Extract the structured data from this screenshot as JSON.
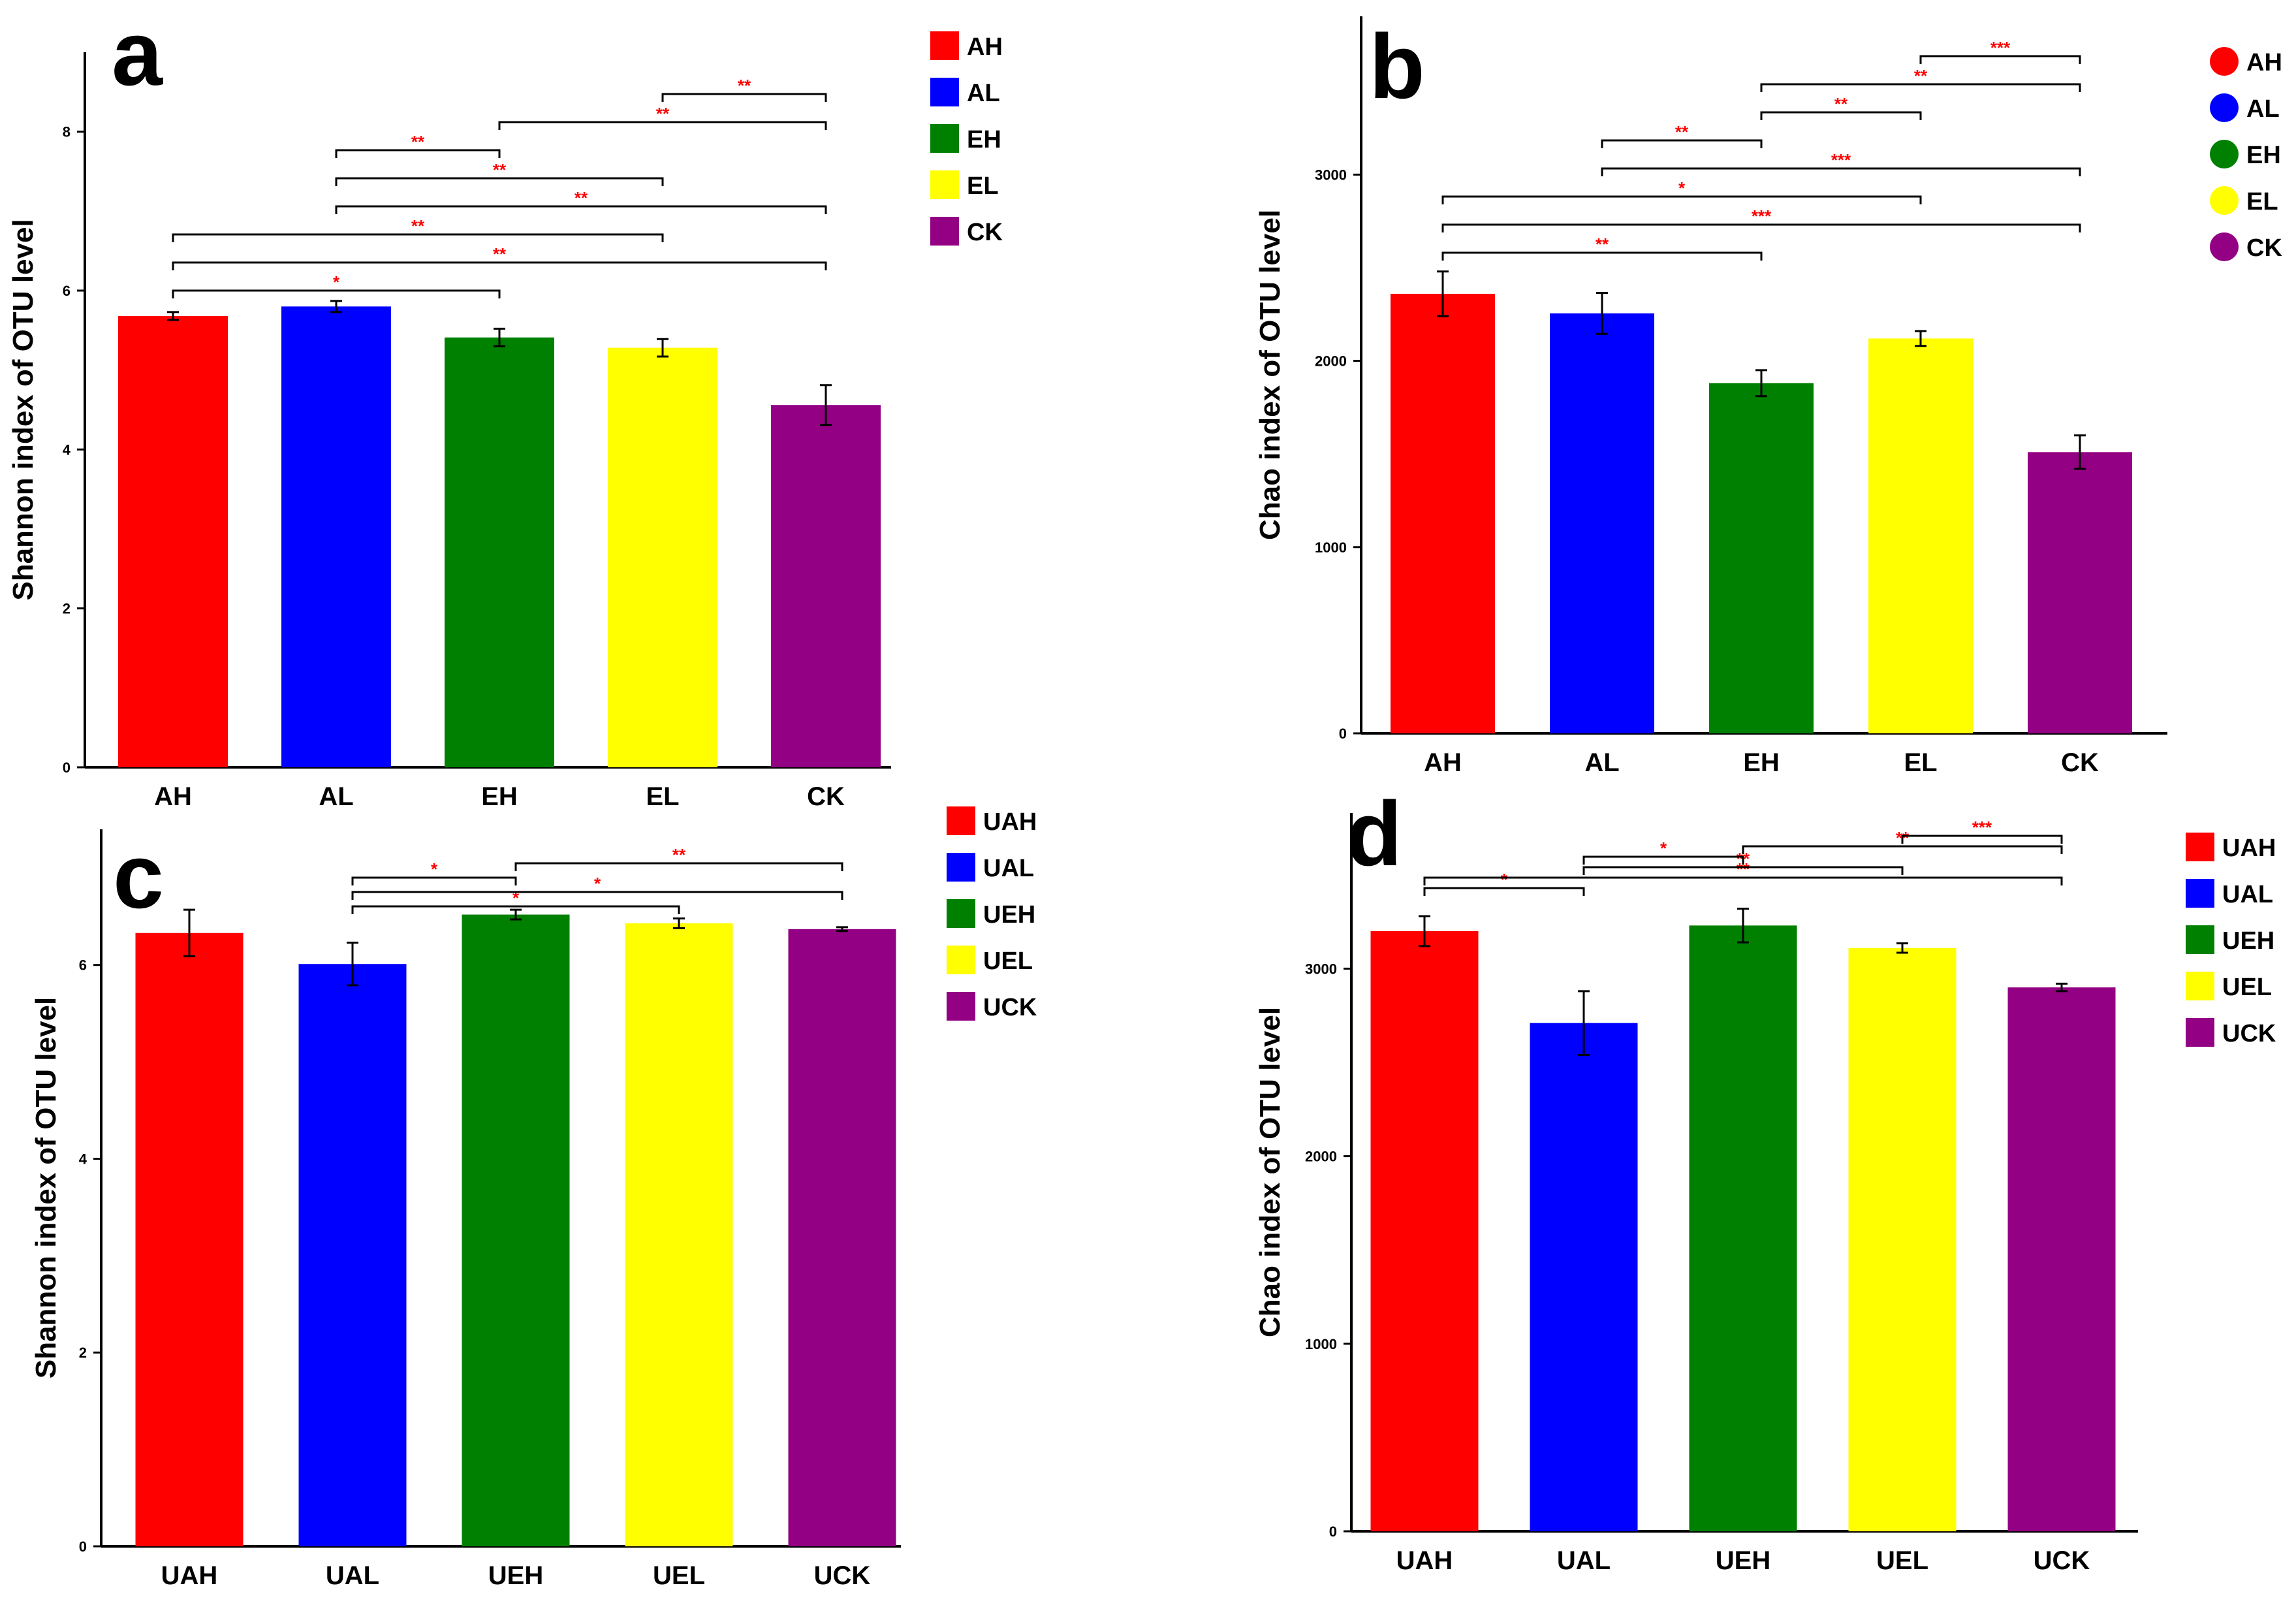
{
  "figure": {
    "colors": {
      "red": "#ff0000",
      "blue": "#0000ff",
      "green": "#008000",
      "yellow": "#ffff00",
      "purple": "#930083",
      "sig": "#ff0000"
    }
  },
  "chart_data": [
    {
      "panel": "a",
      "type": "bar",
      "categories": [
        "AH",
        "AL",
        "EH",
        "EL",
        "CK"
      ],
      "values": [
        5.68,
        5.8,
        5.41,
        5.28,
        4.56
      ],
      "errors": [
        0.05,
        0.07,
        0.11,
        0.11,
        0.25
      ],
      "colors": [
        "#ff0000",
        "#0000ff",
        "#008000",
        "#ffff00",
        "#930083"
      ],
      "legend": [
        "AH",
        "AL",
        "EH",
        "EL",
        "CK"
      ],
      "legend_marker": "square",
      "ylabel": "Shannon index of OTU level",
      "ylim": [
        0,
        9
      ],
      "yticks": [
        0,
        2,
        4,
        6,
        8
      ],
      "significance": [
        {
          "from": 0,
          "to": 2,
          "label": "*"
        },
        {
          "from": 0,
          "to": 4,
          "label": "**"
        },
        {
          "from": 0,
          "to": 3,
          "label": "**"
        },
        {
          "from": 1,
          "to": 4,
          "label": "**"
        },
        {
          "from": 1,
          "to": 3,
          "label": "**"
        },
        {
          "from": 1,
          "to": 2,
          "label": "**"
        },
        {
          "from": 2,
          "to": 4,
          "label": "**"
        },
        {
          "from": 3,
          "to": 4,
          "label": "**"
        }
      ]
    },
    {
      "panel": "b",
      "type": "bar",
      "categories": [
        "AH",
        "AL",
        "EH",
        "EL",
        "CK"
      ],
      "values": [
        2360,
        2255,
        1880,
        2120,
        1510
      ],
      "errors": [
        120,
        110,
        70,
        40,
        90
      ],
      "colors": [
        "#ff0000",
        "#0000ff",
        "#008000",
        "#ffff00",
        "#930083"
      ],
      "legend": [
        "AH",
        "AL",
        "EH",
        "EL",
        "CK"
      ],
      "legend_marker": "circle",
      "ylabel": "Chao index of OTU level",
      "ylim": [
        0,
        3850
      ],
      "yticks": [
        0,
        1000,
        2000,
        3000
      ],
      "significance": [
        {
          "from": 0,
          "to": 2,
          "label": "**"
        },
        {
          "from": 0,
          "to": 4,
          "label": "***"
        },
        {
          "from": 0,
          "to": 3,
          "label": "*"
        },
        {
          "from": 1,
          "to": 4,
          "label": "***"
        },
        {
          "from": 1,
          "to": 2,
          "label": "**"
        },
        {
          "from": 2,
          "to": 3,
          "label": "**"
        },
        {
          "from": 2,
          "to": 4,
          "label": "**"
        },
        {
          "from": 3,
          "to": 4,
          "label": "***"
        }
      ]
    },
    {
      "panel": "c",
      "type": "bar",
      "categories": [
        "UAH",
        "UAL",
        "UEH",
        "UEL",
        "UCK"
      ],
      "values": [
        6.33,
        6.01,
        6.52,
        6.43,
        6.37
      ],
      "errors": [
        0.24,
        0.22,
        0.05,
        0.05,
        0.02
      ],
      "colors": [
        "#ff0000",
        "#0000ff",
        "#008000",
        "#ffff00",
        "#930083"
      ],
      "legend": [
        "UAH",
        "UAL",
        "UEH",
        "UEL",
        "UCK"
      ],
      "legend_marker": "square",
      "ylabel": "Shannon index of OTU level",
      "ylim": [
        0,
        7.4
      ],
      "yticks": [
        0,
        2,
        4,
        6
      ],
      "significance": [
        {
          "from": 1,
          "to": 3,
          "label": "*"
        },
        {
          "from": 1,
          "to": 4,
          "label": "*"
        },
        {
          "from": 1,
          "to": 2,
          "label": "*"
        },
        {
          "from": 2,
          "to": 4,
          "label": "**"
        }
      ]
    },
    {
      "panel": "d",
      "type": "bar",
      "categories": [
        "UAH",
        "UAL",
        "UEH",
        "UEL",
        "UCK"
      ],
      "values": [
        3200,
        2710,
        3230,
        3110,
        2900
      ],
      "errors": [
        80,
        170,
        90,
        25,
        20
      ],
      "colors": [
        "#ff0000",
        "#0000ff",
        "#008000",
        "#ffff00",
        "#930083"
      ],
      "legend": [
        "UAH",
        "UAL",
        "UEH",
        "UEL",
        "UCK"
      ],
      "legend_marker": "square",
      "ylabel": "Chao index of OTU level",
      "ylim": [
        0,
        3830
      ],
      "yticks": [
        0,
        1000,
        2000,
        3000
      ],
      "significance": [
        {
          "from": 0,
          "to": 1,
          "label": "*"
        },
        {
          "from": 0,
          "to": 4,
          "label": "**"
        },
        {
          "from": 1,
          "to": 3,
          "label": "**"
        },
        {
          "from": 1,
          "to": 2,
          "label": "*"
        },
        {
          "from": 2,
          "to": 4,
          "label": "**"
        },
        {
          "from": 3,
          "to": 4,
          "label": "***"
        }
      ]
    }
  ]
}
